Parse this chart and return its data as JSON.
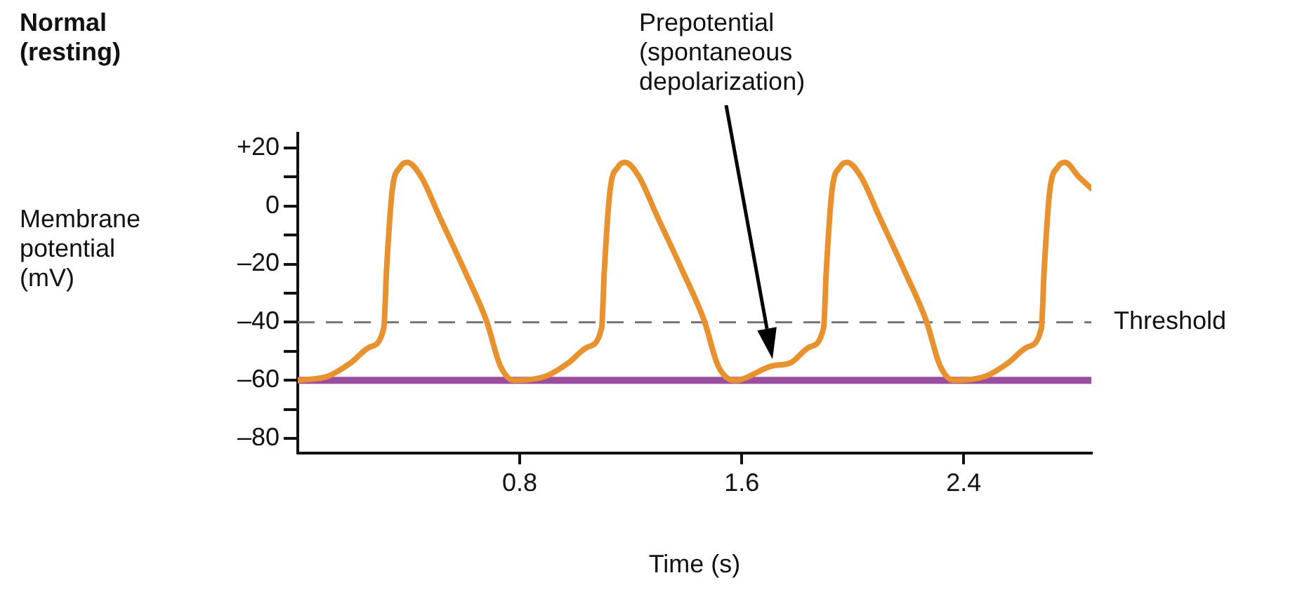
{
  "chart_data": {
    "type": "line",
    "title": "Normal (resting)",
    "xlabel": "Time (s)",
    "ylabel": "Membrane potential (mV)",
    "xlim": [
      0,
      2.86
    ],
    "xticks": [
      0.8,
      1.6,
      2.4
    ],
    "ylim": [
      -85,
      25
    ],
    "yticks": [
      {
        "value": 20,
        "label": "+20"
      },
      {
        "value": 10,
        "label": null
      },
      0,
      {
        "value": -10,
        "label": null
      },
      {
        "value": -20,
        "label": "–20"
      },
      {
        "value": -30,
        "label": null
      },
      {
        "value": -40,
        "label": "–40"
      },
      {
        "value": -50,
        "label": null
      },
      {
        "value": -60,
        "label": "–60"
      },
      {
        "value": -70,
        "label": null
      },
      {
        "value": -80,
        "label": "–80"
      }
    ],
    "grid": false,
    "legend": false,
    "marker": "none",
    "line_style": "solid",
    "series": [
      {
        "color": "#e8922f",
        "x": [
          0,
          0.11,
          0.19,
          0.26,
          0.31,
          0.32,
          0.34,
          0.37,
          0.395,
          0.445,
          0.51,
          0.6,
          0.68,
          0.73,
          0.78,
          0.895,
          0.975,
          1.045,
          1.095,
          1.105,
          1.125,
          1.155,
          1.18,
          1.23,
          1.295,
          1.385,
          1.465,
          1.515,
          1.575,
          1.71,
          1.775,
          1.845,
          1.895,
          1.905,
          1.925,
          1.955,
          1.98,
          2.03,
          2.095,
          2.185,
          2.265,
          2.315,
          2.365,
          2.48,
          2.56,
          2.63,
          2.68,
          2.69,
          2.71,
          2.74,
          2.765,
          2.815,
          2.86
        ],
        "values": [
          -60,
          -58.5,
          -54,
          -48.5,
          -42,
          -22,
          5,
          13.5,
          15,
          10,
          -3.5,
          -22,
          -39.5,
          -55,
          -60,
          -58.5,
          -54,
          -48.5,
          -42,
          -22,
          5,
          13.5,
          15,
          10,
          -3.5,
          -22,
          -39.5,
          -55,
          -60,
          -55,
          -54,
          -48.5,
          -42,
          -22,
          5,
          13.5,
          15,
          10,
          -3.5,
          -22,
          -39.5,
          -55,
          -60,
          -58.5,
          -54,
          -48.5,
          -42,
          -22,
          5,
          13.5,
          15,
          10,
          6
        ]
      }
    ],
    "ref_lines": [
      {
        "axis": "y",
        "value": -40,
        "label": "Threshold",
        "color": "#777777",
        "line_style": "dashed"
      },
      {
        "axis": "y",
        "value": -60,
        "color": "#9b4ea0",
        "line_style": "solid"
      }
    ],
    "annotations": [
      "Prepotential (spontaneous depolarization)"
    ]
  }
}
